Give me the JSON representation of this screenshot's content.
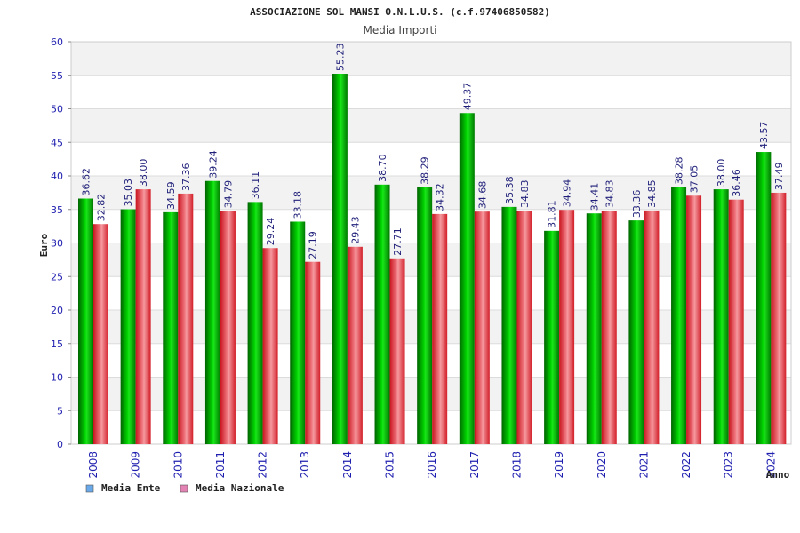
{
  "chart_data": {
    "type": "bar",
    "title": "ASSOCIAZIONE SOL MANSI O.N.L.U.S. (c.f.97406850582)",
    "subtitle": "Media Importi",
    "xlabel": "Anno",
    "ylabel": "Euro",
    "ylim": [
      0,
      60
    ],
    "yticks": [
      "0",
      "5",
      "10",
      "15",
      "20",
      "25",
      "30",
      "35",
      "40",
      "45",
      "50",
      "55",
      "60"
    ],
    "grid": true,
    "legend_position": "bottom-left",
    "categories": [
      "2008",
      "2009",
      "2010",
      "2011",
      "2012",
      "2013",
      "2014",
      "2015",
      "2016",
      "2017",
      "2018",
      "2019",
      "2020",
      "2021",
      "2022",
      "2023",
      "2024"
    ],
    "series": [
      {
        "name": "Media Ente",
        "color": "#00b400",
        "legend_color": "#6aa9e9",
        "values": [
          36.62,
          35.03,
          34.59,
          39.24,
          36.11,
          33.18,
          55.23,
          38.7,
          38.29,
          49.37,
          35.38,
          31.81,
          34.41,
          33.36,
          38.28,
          38.0,
          43.57
        ],
        "labels": [
          "36.62",
          "35.03",
          "34.59",
          "39.24",
          "36.11",
          "33.18",
          "55.23",
          "38.70",
          "38.29",
          "49.37",
          "35.38",
          "31.81",
          "34.41",
          "33.36",
          "38.28",
          "38.00",
          "43.57"
        ]
      },
      {
        "name": "Media Nazionale",
        "color": "#e8303a",
        "legend_color": "#e383b4",
        "values": [
          32.82,
          38.0,
          37.36,
          34.79,
          29.24,
          27.19,
          29.43,
          27.71,
          34.32,
          34.68,
          34.83,
          34.94,
          34.83,
          34.85,
          37.05,
          36.46,
          37.49
        ],
        "labels": [
          "32.82",
          "38.00",
          "37.36",
          "34.79",
          "29.24",
          "27.19",
          "29.43",
          "27.71",
          "34.32",
          "34.68",
          "34.83",
          "34.94",
          "34.83",
          "34.85",
          "37.05",
          "36.46",
          "37.49"
        ]
      }
    ]
  }
}
